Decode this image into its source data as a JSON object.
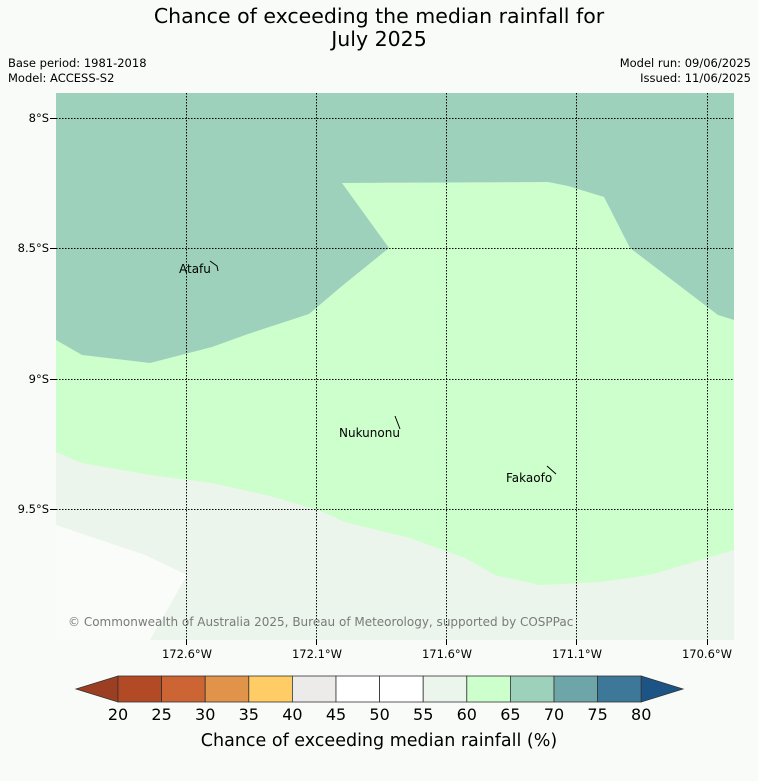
{
  "title_line1": "Chance of exceeding the median rainfall for",
  "title_line2": "July 2025",
  "base_period": "Base period: 1981-2018",
  "model": "Model: ACCESS-S2",
  "model_run": "Model run: 09/06/2025",
  "issued": "Issued: 11/06/2025",
  "lat_labels": [
    "8°S",
    "8.5°S",
    "9°S",
    "9.5°S"
  ],
  "lon_labels": [
    "172.6°W",
    "172.1°W",
    "171.6°W",
    "171.1°W",
    "170.6°W"
  ],
  "places": {
    "atafu": "Atafu",
    "nukunonu": "Nukunonu",
    "fakaofo": "Fakaofo"
  },
  "copyright": "© Commonwealth of Australia 2025, Bureau of Meteorology, supported by COSPPac",
  "colorbar": {
    "ticks": [
      "20",
      "25",
      "30",
      "35",
      "40",
      "45",
      "50",
      "55",
      "60",
      "65",
      "70",
      "75",
      "80"
    ],
    "colors": [
      "#b34a26",
      "#cc6533",
      "#e09349",
      "#ffcc66",
      "#ecebe9",
      "#ffffff",
      "#ffffff",
      "#ebf5eb",
      "#ccffcc",
      "#9dd1bb",
      "#6ea5a8",
      "#3e7899"
    ],
    "under_color": "#9b3e22",
    "over_color": "#1c5585",
    "label": "Chance of exceeding median rainfall (%)"
  },
  "map_colors": {
    "band_70": "#9dd1bb",
    "band_65": "#ccffcc",
    "band_60": "#ebf5eb",
    "band_55": "#fafcfa"
  }
}
